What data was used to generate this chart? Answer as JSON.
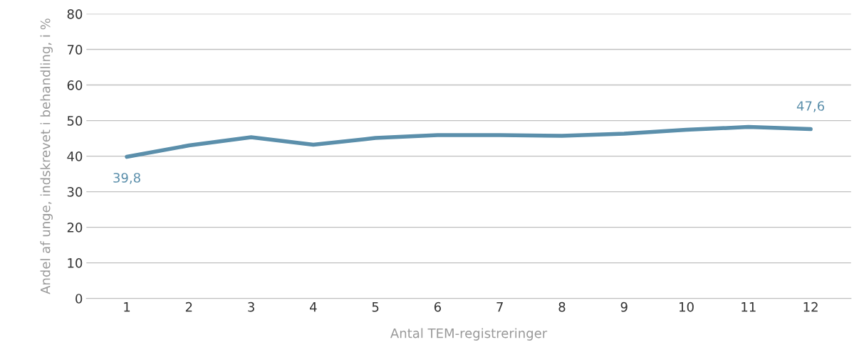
{
  "chart_data": {
    "type": "line",
    "xlabel": "Antal TEM-registreringer",
    "ylabel": "Andel af unge, indskrevet i behandling, i %",
    "categories": [
      "1",
      "2",
      "3",
      "4",
      "5",
      "6",
      "7",
      "8",
      "9",
      "10",
      "11",
      "12"
    ],
    "series": [
      {
        "color": "#5b8fab",
        "values": [
          39.8,
          43.0,
          45.3,
          43.2,
          45.1,
          45.9,
          45.9,
          45.7,
          46.3,
          47.4,
          48.2,
          47.6
        ],
        "value_labels": [
          "39,8",
          null,
          null,
          null,
          null,
          null,
          null,
          null,
          null,
          null,
          null,
          "47,6"
        ]
      }
    ],
    "ylim": [
      0,
      80
    ],
    "yticks": [
      0,
      10,
      20,
      30,
      40,
      50,
      60,
      70,
      80
    ],
    "grid": "y",
    "legend": false,
    "marker": "none",
    "line_style": "solid"
  }
}
